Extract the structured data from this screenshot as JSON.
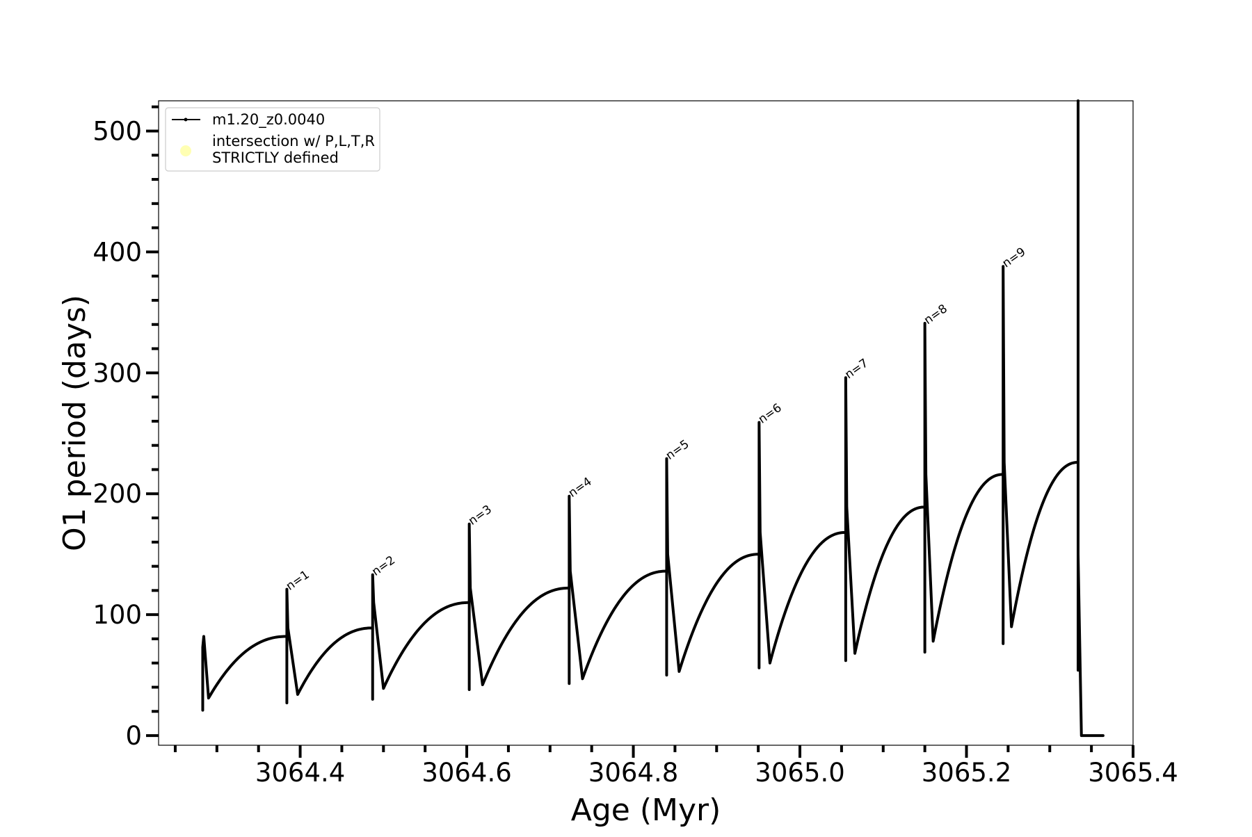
{
  "chart_data": {
    "type": "line",
    "title": "",
    "xlabel": "Age (Myr)",
    "ylabel": "O1 period (days)",
    "xlim": [
      3064.23,
      3065.4
    ],
    "ylim": [
      -8,
      525
    ],
    "x_ticks": [
      3064.4,
      3064.6,
      3064.8,
      3065.0,
      3065.2,
      3065.4
    ],
    "x_tick_labels": [
      "3064.4",
      "3064.6",
      "3064.8",
      "3065.0",
      "3065.2",
      "3065.4"
    ],
    "y_ticks": [
      0,
      100,
      200,
      300,
      400,
      500
    ],
    "y_tick_labels": [
      "0",
      "100",
      "200",
      "300",
      "400",
      "500"
    ],
    "x_minor_step": 0.05,
    "y_minor_step": 20,
    "grid": false,
    "legend": {
      "location": "upper-left",
      "entries": [
        {
          "label": "m1.20_z0.0040",
          "marker": "line-dot",
          "color": "#000000"
        },
        {
          "label": "intersection w/ P,L,T,R\nSTRICTLY defined",
          "marker": "circle",
          "color": "#ffffb3"
        }
      ]
    },
    "series": [
      {
        "name": "m1.20_z0.0040",
        "color": "#000000",
        "pulses": [
          {
            "label": "",
            "x_start": 3064.283,
            "x_end": 3064.384,
            "y_start": 31,
            "y_end": 82,
            "spike_top": 73,
            "spike_bottom": 21,
            "dip_x": 3064.29,
            "dip_y": 31
          },
          {
            "label": "n=1",
            "x_start": 3064.384,
            "x_end": 3064.487,
            "y_start": 34,
            "y_end": 89,
            "spike_top": 121,
            "spike_bottom": 27,
            "dip_x": 3064.397,
            "dip_y": 34
          },
          {
            "label": "n=2",
            "x_start": 3064.487,
            "x_end": 3064.603,
            "y_start": 39,
            "y_end": 110,
            "spike_top": 133,
            "spike_bottom": 30,
            "dip_x": 3064.5,
            "dip_y": 39
          },
          {
            "label": "n=3",
            "x_start": 3064.603,
            "x_end": 3064.723,
            "y_start": 42,
            "y_end": 122,
            "spike_top": 175,
            "spike_bottom": 38,
            "dip_x": 3064.619,
            "dip_y": 42
          },
          {
            "label": "n=4",
            "x_start": 3064.723,
            "x_end": 3064.84,
            "y_start": 47,
            "y_end": 136,
            "spike_top": 198,
            "spike_bottom": 43,
            "dip_x": 3064.739,
            "dip_y": 47
          },
          {
            "label": "n=5",
            "x_start": 3064.84,
            "x_end": 3064.951,
            "y_start": 53,
            "y_end": 150,
            "spike_top": 229,
            "spike_bottom": 50,
            "dip_x": 3064.855,
            "dip_y": 53
          },
          {
            "label": "n=6",
            "x_start": 3064.951,
            "x_end": 3065.055,
            "y_start": 60,
            "y_end": 168,
            "spike_top": 259,
            "spike_bottom": 56,
            "dip_x": 3064.964,
            "dip_y": 60
          },
          {
            "label": "n=7",
            "x_start": 3065.055,
            "x_end": 3065.15,
            "y_start": 68,
            "y_end": 189,
            "spike_top": 296,
            "spike_bottom": 62,
            "dip_x": 3065.066,
            "dip_y": 68
          },
          {
            "label": "n=8",
            "x_start": 3065.15,
            "x_end": 3065.244,
            "y_start": 78,
            "y_end": 216,
            "spike_top": 341,
            "spike_bottom": 69,
            "dip_x": 3065.16,
            "dip_y": 78
          },
          {
            "label": "n=9",
            "x_start": 3065.244,
            "x_end": 3065.334,
            "y_start": 90,
            "y_end": 226,
            "spike_top": 388,
            "spike_bottom": 76,
            "dip_x": 3065.254,
            "dip_y": 90
          }
        ],
        "final_spike": {
          "x": 3065.334,
          "y_top": 525,
          "y_bottom": 54,
          "x_end": 3065.338,
          "y_end": 0
        },
        "tail": {
          "x_start": 3065.338,
          "x_end": 3065.364,
          "y": 0
        }
      }
    ]
  }
}
